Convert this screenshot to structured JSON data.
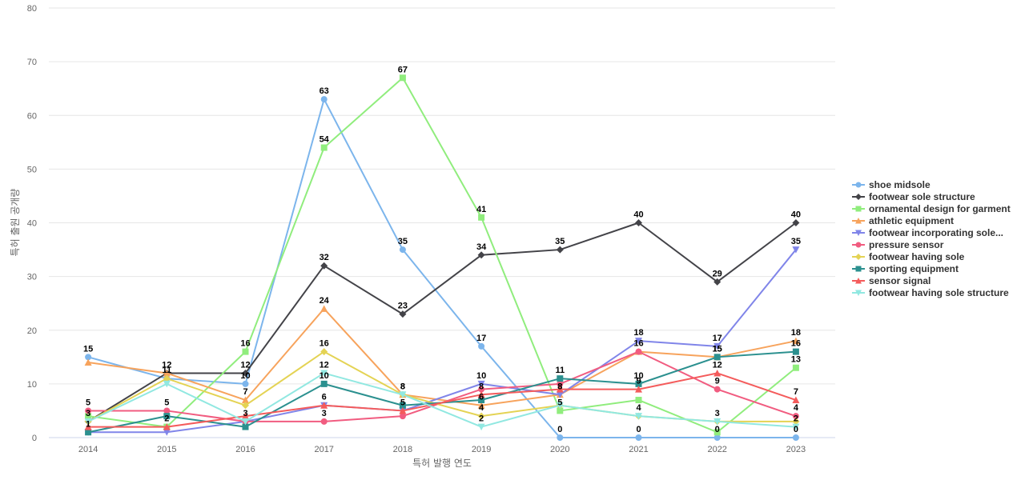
{
  "chart_data": {
    "type": "line",
    "xlabel": "특허 발행 연도",
    "ylabel": "특허 출원 공개량",
    "ylim": [
      0,
      80
    ],
    "yticks": [
      "0",
      "10",
      "20",
      "30",
      "40",
      "50",
      "60",
      "70",
      "80"
    ],
    "categories": [
      "2014",
      "2015",
      "2016",
      "2017",
      "2018",
      "2019",
      "2020",
      "2021",
      "2022",
      "2023"
    ],
    "grid": true,
    "legend": "right",
    "series": [
      {
        "name": "shoe midsole",
        "color": "#7cb5ec",
        "marker": "circle",
        "values": [
          15,
          11,
          10,
          63,
          35,
          17,
          0,
          0,
          0,
          0
        ],
        "labeled": true
      },
      {
        "name": "footwear sole structure",
        "color": "#434348",
        "marker": "diamond",
        "values": [
          3,
          12,
          12,
          32,
          23,
          34,
          35,
          40,
          29,
          40
        ],
        "labeled": true
      },
      {
        "name": "ornamental design for garment",
        "color": "#90ed7d",
        "marker": "square",
        "values": [
          4,
          2,
          16,
          54,
          67,
          41,
          5,
          7,
          1,
          13
        ],
        "labeled": true,
        "label_mask": [
          false,
          false,
          true,
          true,
          true,
          true,
          true,
          false,
          false,
          true
        ]
      },
      {
        "name": "athletic equipment",
        "color": "#f7a35c",
        "marker": "triangle",
        "values": [
          14,
          12,
          7,
          24,
          8,
          6,
          8,
          16,
          15,
          18
        ],
        "labeled": true,
        "label_mask": [
          false,
          false,
          true,
          true,
          true,
          true,
          true,
          true,
          true,
          true
        ]
      },
      {
        "name": "footwear incorporating sole...",
        "color": "#8085e9",
        "marker": "triangle-down",
        "values": [
          1,
          1,
          3,
          6,
          5,
          10,
          8,
          18,
          17,
          35
        ],
        "labeled": true,
        "label_mask": [
          false,
          false,
          true,
          true,
          true,
          true,
          true,
          true,
          true,
          true
        ]
      },
      {
        "name": "pressure sensor",
        "color": "#f15c80",
        "marker": "circle",
        "values": [
          5,
          5,
          3,
          3,
          4,
          9,
          10,
          16,
          9,
          4
        ],
        "labeled": true,
        "label_mask": [
          true,
          true,
          false,
          true,
          false,
          false,
          false,
          false,
          true,
          true
        ]
      },
      {
        "name": "footwear having sole",
        "color": "#e4d354",
        "marker": "diamond",
        "values": [
          3,
          11,
          6,
          16,
          8,
          4,
          6,
          4,
          3,
          3
        ],
        "labeled": true,
        "label_mask": [
          false,
          false,
          false,
          true,
          false,
          true,
          false,
          true,
          true,
          false
        ]
      },
      {
        "name": "sporting equipment",
        "color": "#2b908f",
        "marker": "square",
        "values": [
          1,
          4,
          2,
          10,
          6,
          7,
          11,
          10,
          15,
          16
        ],
        "labeled": true,
        "label_mask": [
          true,
          false,
          false,
          true,
          false,
          false,
          true,
          true,
          true,
          true
        ]
      },
      {
        "name": "sensor signal",
        "color": "#f45b5b",
        "marker": "triangle",
        "values": [
          2,
          2,
          4,
          6,
          5,
          8,
          9,
          9,
          12,
          7
        ],
        "labeled": true,
        "label_mask": [
          false,
          true,
          false,
          false,
          false,
          true,
          false,
          true,
          true,
          true
        ]
      },
      {
        "name": "footwear having sole structure",
        "color": "#91e8e1",
        "marker": "triangle-down",
        "values": [
          3,
          10,
          3,
          12,
          8,
          2,
          6,
          4,
          3,
          2
        ],
        "labeled": true,
        "label_mask": [
          false,
          false,
          false,
          true,
          true,
          true,
          false,
          false,
          false,
          true
        ]
      }
    ]
  }
}
